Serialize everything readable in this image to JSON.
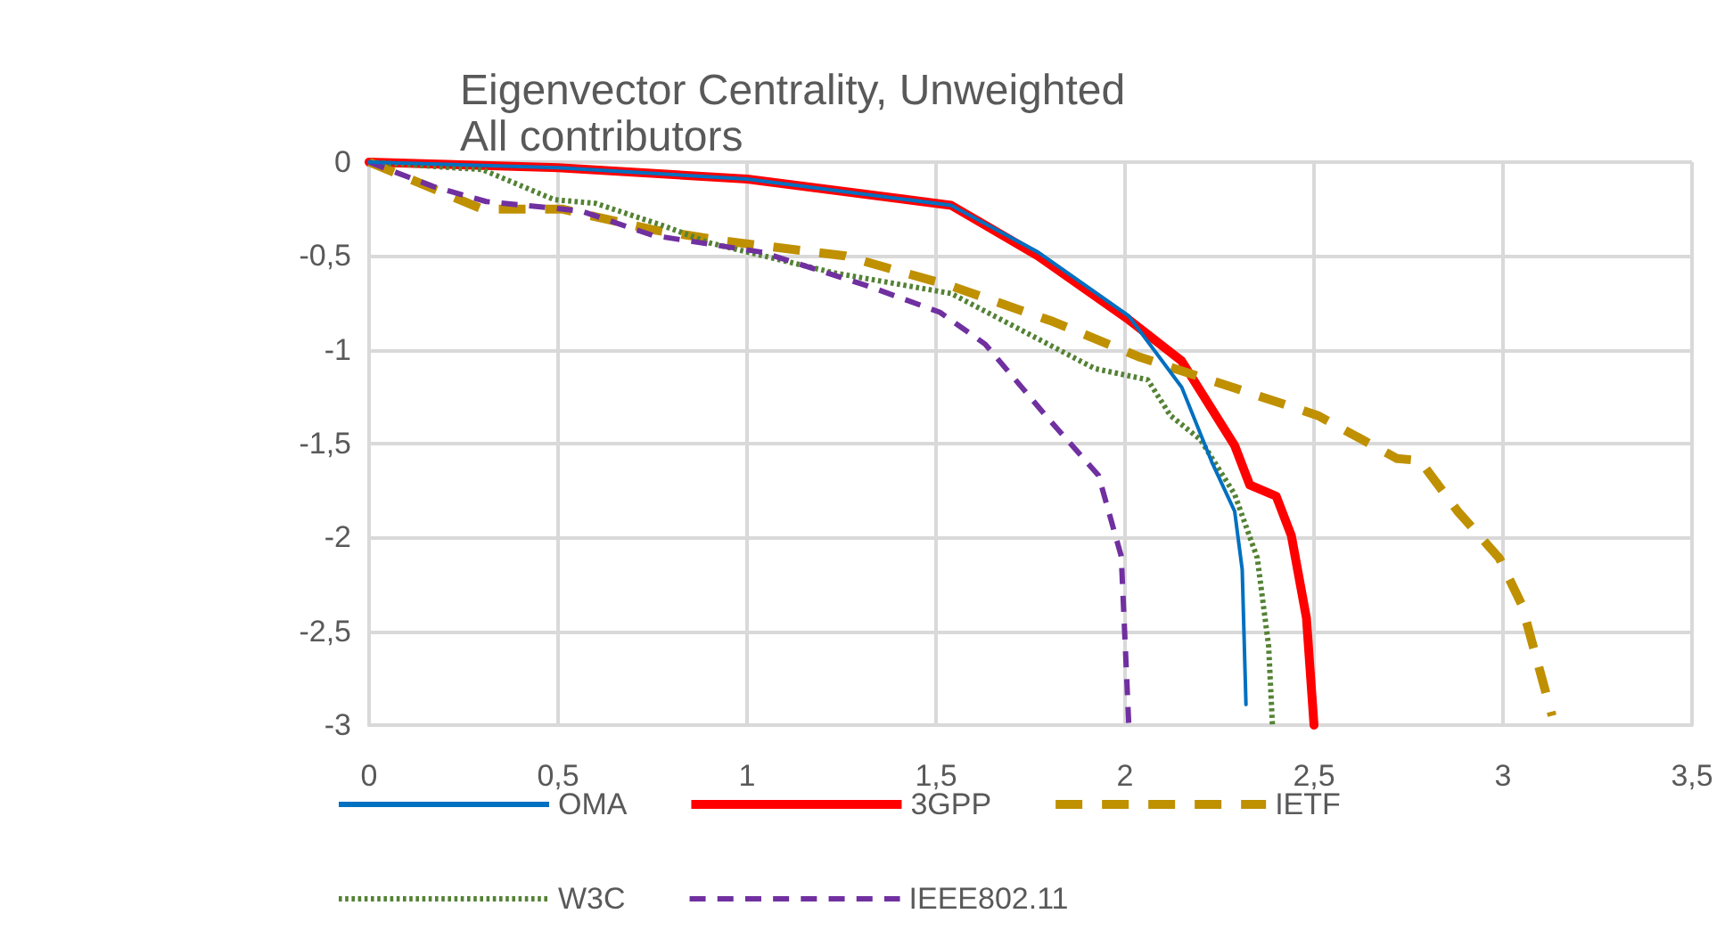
{
  "chart_data": {
    "type": "line",
    "title": "Eigenvector Centrality, Unweighted",
    "subtitle": "All contributors",
    "xlim": [
      0,
      3.5
    ],
    "xticks": [
      0,
      {
        "value": 0.5,
        "label": "0,5"
      },
      1,
      {
        "value": 1.5,
        "label": "1,5"
      },
      2,
      {
        "value": 2.5,
        "label": "2,5"
      },
      3,
      {
        "value": 3.5,
        "label": "3,5"
      }
    ],
    "ylim": [
      -3,
      0
    ],
    "yticks": [
      -3,
      {
        "value": -2.5,
        "label": "-2,5"
      },
      -2,
      {
        "value": -1.5,
        "label": "-1,5"
      },
      -1,
      {
        "value": -0.5,
        "label": "-0,5"
      },
      0
    ],
    "grid": true,
    "legend": "bottom",
    "marker": "none",
    "series": [
      {
        "name": "OMA",
        "color": "#0070c0",
        "line_style": "solid",
        "x": [
          0,
          0.5,
          1.0,
          1.54,
          1.77,
          2.01,
          2.15,
          2.23,
          2.29,
          2.31,
          2.32
        ],
        "values": [
          0,
          -0.03,
          -0.09,
          -0.23,
          -0.48,
          -0.82,
          -1.2,
          -1.6,
          -1.86,
          -2.17,
          -2.89
        ]
      },
      {
        "name": "3GPP",
        "color": "#ff0000",
        "line_style": "solid",
        "x": [
          0,
          0.5,
          1.0,
          1.54,
          1.77,
          2.01,
          2.15,
          2.29,
          2.33,
          2.4,
          2.44,
          2.48,
          2.5
        ],
        "values": [
          0,
          -0.03,
          -0.09,
          -0.23,
          -0.5,
          -0.84,
          -1.06,
          -1.51,
          -1.72,
          -1.78,
          -1.99,
          -2.43,
          -3
        ]
      },
      {
        "name": "IETF",
        "color": "#bf9000",
        "line_style": "dashed",
        "x": [
          0,
          0.3,
          0.51,
          0.75,
          0.94,
          1.26,
          1.54,
          1.81,
          2.04,
          2.33,
          2.51,
          2.72,
          2.78,
          2.88,
          2.99,
          3.05,
          3.13
        ],
        "values": [
          0,
          -0.25,
          -0.25,
          -0.36,
          -0.42,
          -0.5,
          -0.66,
          -0.85,
          -1.04,
          -1.23,
          -1.35,
          -1.58,
          -1.59,
          -1.86,
          -2.11,
          -2.36,
          -2.95
        ]
      },
      {
        "name": "W3C",
        "color": "#548235",
        "line_style": "dotted",
        "x": [
          0,
          0.3,
          0.49,
          0.6,
          0.78,
          0.9,
          1.23,
          1.54,
          1.92,
          2.06,
          2.12,
          2.2,
          2.29,
          2.35,
          2.38,
          2.39
        ],
        "values": [
          0,
          -0.04,
          -0.2,
          -0.22,
          -0.34,
          -0.43,
          -0.59,
          -0.7,
          -1.1,
          -1.16,
          -1.35,
          -1.48,
          -1.77,
          -2.11,
          -2.58,
          -3
        ]
      },
      {
        "name": "IEEE802.11",
        "color": "#7030a0",
        "line_style": "dashed",
        "x": [
          0,
          0.17,
          0.31,
          0.56,
          0.75,
          1.04,
          1.32,
          1.51,
          1.63,
          1.79,
          1.93,
          1.99,
          2.01
        ],
        "values": [
          0,
          -0.13,
          -0.21,
          -0.26,
          -0.39,
          -0.48,
          -0.66,
          -0.8,
          -0.97,
          -1.35,
          -1.67,
          -2.1,
          -3
        ]
      }
    ]
  }
}
